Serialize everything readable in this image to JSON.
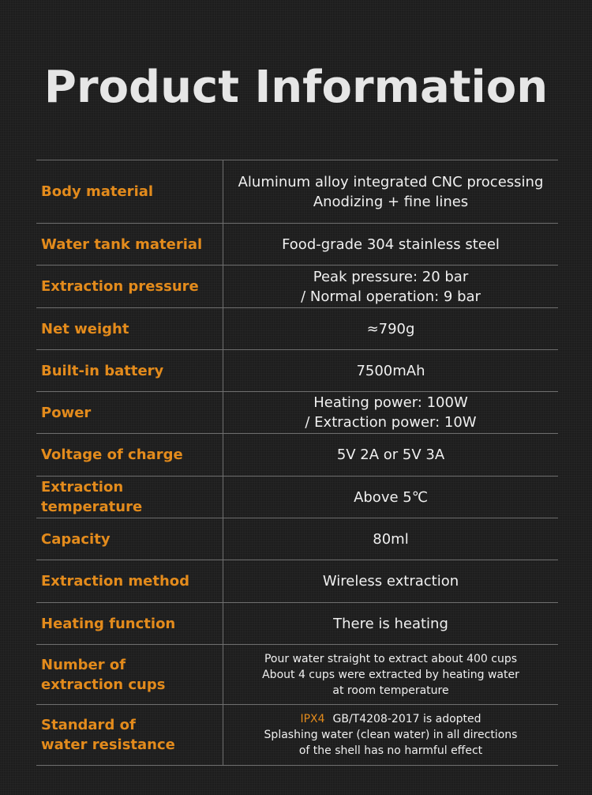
{
  "title": "Product Information",
  "rows": [
    {
      "label": "Body material",
      "lines": [
        "Aluminum alloy integrated CNC processing",
        "Anodizing + fine lines"
      ]
    },
    {
      "label": "Water tank material",
      "lines": [
        "Food-grade 304 stainless steel"
      ]
    },
    {
      "label": "Extraction pressure",
      "lines": [
        "Peak pressure: 20 bar",
        "/ Normal operation: 9 bar"
      ]
    },
    {
      "label": "Net weight",
      "lines": [
        "≈790g"
      ]
    },
    {
      "label": "Built-in battery",
      "lines": [
        "7500mAh"
      ]
    },
    {
      "label": "Power",
      "lines": [
        "Heating power: 100W",
        "/ Extraction power: 10W"
      ]
    },
    {
      "label": "Voltage of charge",
      "lines": [
        "5V 2A or 5V 3A"
      ]
    },
    {
      "label": "Extraction temperature",
      "lines": [
        "Above 5℃"
      ]
    },
    {
      "label": "Capacity",
      "lines": [
        "80ml"
      ]
    },
    {
      "label": "Extraction method",
      "lines": [
        "Wireless extraction"
      ]
    },
    {
      "label": "Heating function",
      "lines": [
        "There is heating"
      ]
    },
    {
      "label": "Number of extraction cups",
      "label_lines": [
        "Number of",
        "extraction cups"
      ],
      "lines": [
        "Pour water straight to extract about 400 cups",
        "About 4 cups were extracted by heating water",
        "at room temperature"
      ]
    },
    {
      "label": "Standard of water resistance",
      "label_lines": [
        "Standard of",
        "water resistance"
      ],
      "highlight": "IPX4",
      "lines": [
        "GB/T4208-2017 is adopted",
        "Splashing water (clean water) in all directions",
        "of the shell has no harmful effect"
      ]
    }
  ]
}
